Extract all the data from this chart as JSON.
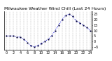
{
  "title": "Milwaukee Weather Wind Chill (Last 24 Hours)",
  "y_values": [
    5,
    5,
    5,
    4,
    4,
    2,
    -1,
    -4,
    -5,
    -4,
    -2,
    0,
    2,
    5,
    10,
    15,
    20,
    24,
    25,
    23,
    19,
    17,
    15,
    13,
    10
  ],
  "line_color": "#0000dd",
  "marker_color": "#000033",
  "bg_color": "#ffffff",
  "ylim": [
    -8,
    28
  ],
  "yticks": [
    -5,
    0,
    5,
    10,
    15,
    20,
    25
  ],
  "grid_color": "#888888",
  "title_fontsize": 4.5,
  "tick_fontsize": 3.5,
  "n_points": 25
}
